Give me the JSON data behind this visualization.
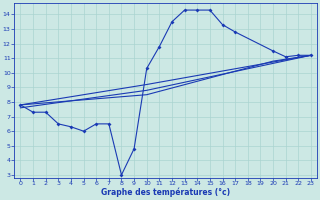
{
  "bg_color": "#cce8e4",
  "grid_color": "#aad4d0",
  "line_color": "#1a3ab4",
  "xlabel": "Graphe des températures (°c)",
  "xlim": [
    -0.5,
    23.5
  ],
  "ylim": [
    2.8,
    14.8
  ],
  "xticks": [
    0,
    1,
    2,
    3,
    4,
    5,
    6,
    7,
    8,
    9,
    10,
    11,
    12,
    13,
    14,
    15,
    16,
    17,
    18,
    19,
    20,
    21,
    22,
    23
  ],
  "yticks": [
    3,
    4,
    5,
    6,
    7,
    8,
    9,
    10,
    11,
    12,
    13,
    14
  ],
  "series1_x": [
    0,
    1,
    2,
    3,
    4,
    5,
    6,
    7,
    8,
    9,
    10,
    11,
    12,
    13,
    14,
    15,
    16,
    17,
    20,
    21,
    22,
    23
  ],
  "series1_y": [
    7.8,
    7.3,
    7.3,
    6.5,
    6.3,
    6.0,
    6.5,
    6.5,
    3.0,
    4.8,
    10.3,
    11.8,
    13.5,
    14.3,
    14.3,
    14.3,
    13.3,
    12.8,
    11.5,
    11.1,
    11.2,
    11.2
  ],
  "series2_x": [
    0,
    10,
    23
  ],
  "series2_y": [
    7.8,
    9.2,
    11.2
  ],
  "series3_x": [
    0,
    10,
    23
  ],
  "series3_y": [
    7.6,
    8.8,
    11.2
  ],
  "series4_x": [
    0,
    10,
    20,
    23
  ],
  "series4_y": [
    7.8,
    8.5,
    10.8,
    11.2
  ]
}
